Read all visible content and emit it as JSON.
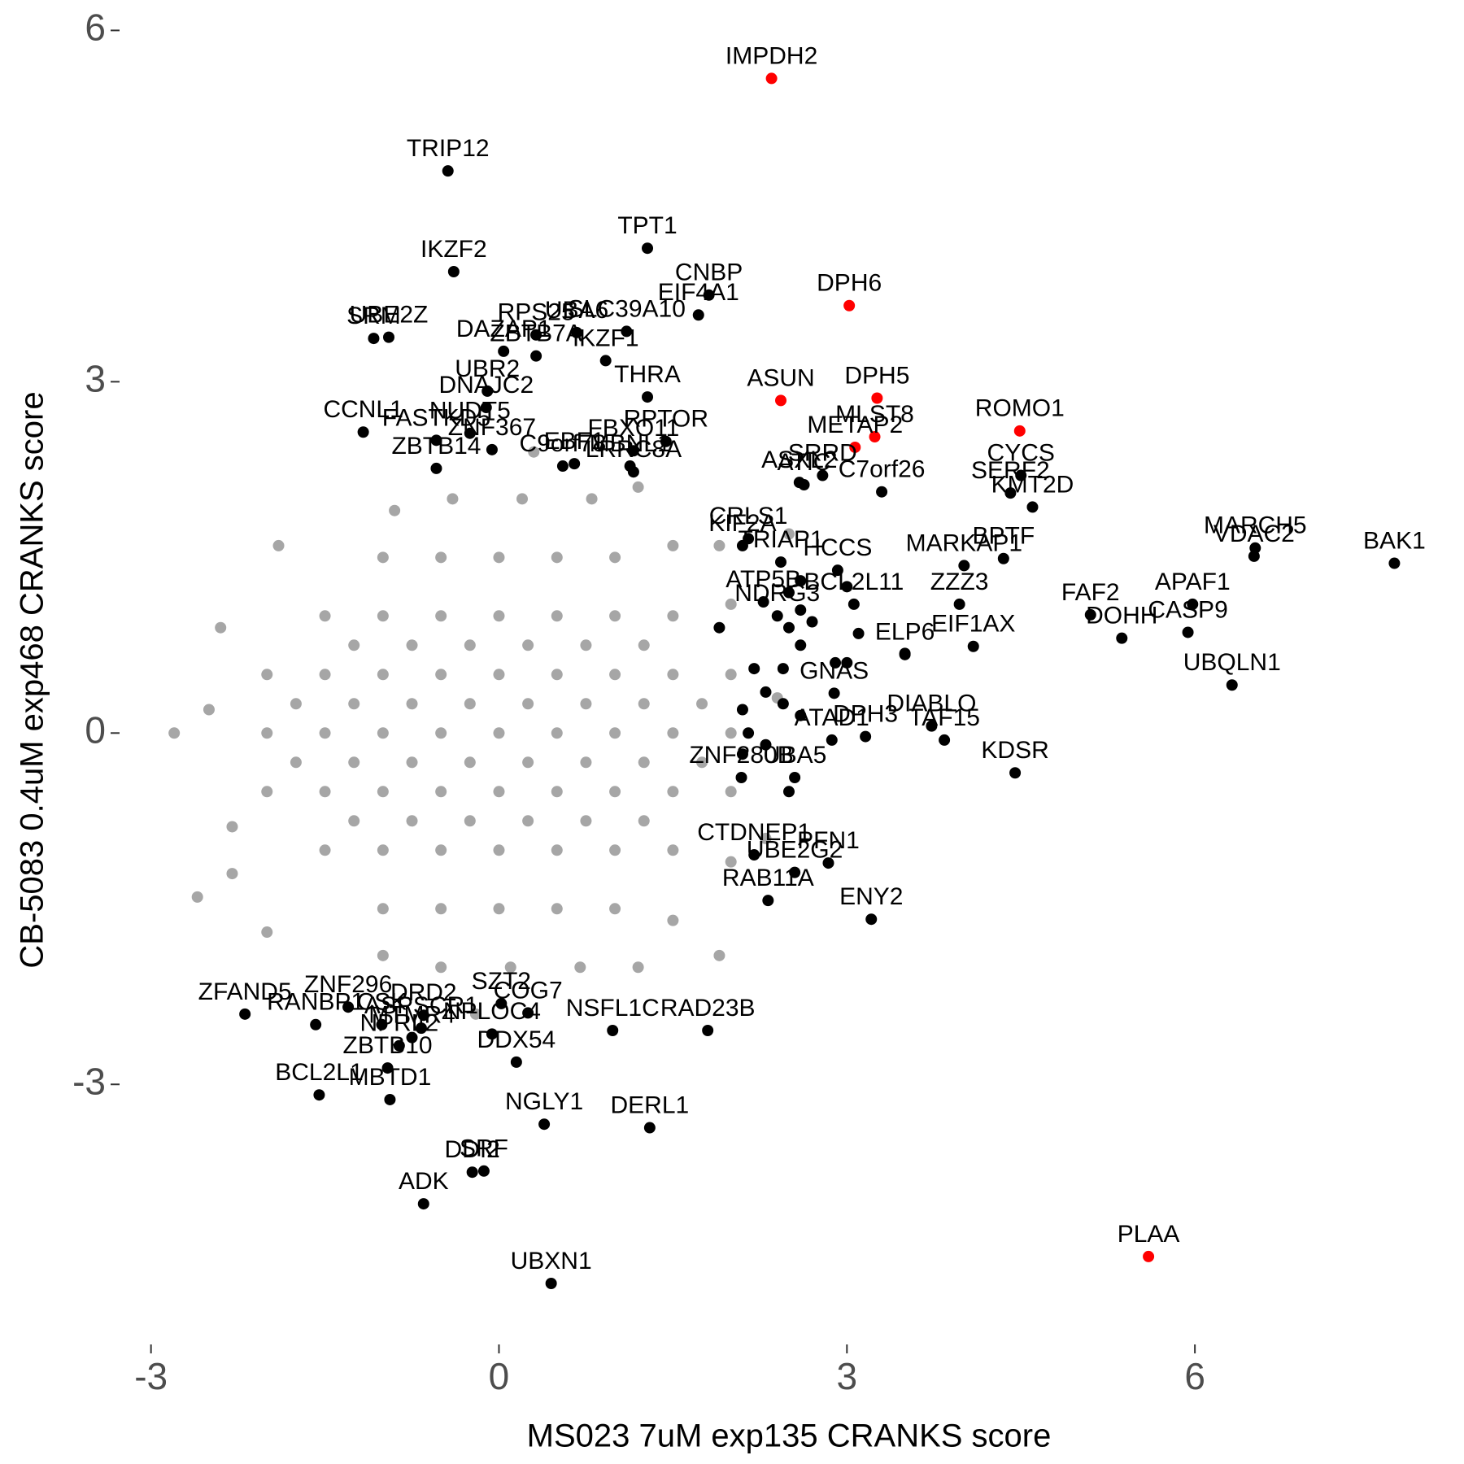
{
  "chart_data": {
    "type": "scatter",
    "xlabel": "MS023 7uM exp135 CRANKS score",
    "ylabel": "CB-5083 0.4uM exp468 CRANKS score",
    "xlim": [
      -3.25,
      8.25
    ],
    "ylim": [
      -5.2,
      6.1
    ],
    "xticks": [
      -3,
      0,
      3,
      6
    ],
    "yticks": [
      -3,
      0,
      3,
      6
    ],
    "series": [
      {
        "color": "#a6a6a6",
        "x": [
          0,
          0.5,
          -0.5,
          1,
          -1,
          1.5,
          -1.5,
          2,
          -2,
          0,
          0.5,
          -0.5,
          1,
          -1,
          1.5,
          -1.5,
          2,
          -2,
          0,
          0.5,
          -0.5,
          1,
          -1,
          1.5,
          -1.5,
          2,
          -2,
          0,
          0.5,
          -0.5,
          1,
          -1,
          1.5,
          -1.5,
          2,
          0,
          0.5,
          -0.5,
          1,
          -1,
          1.5,
          -1.5,
          2,
          0,
          0.5,
          -0.5,
          1,
          -1,
          1.5,
          0,
          0.5,
          -0.5,
          1,
          -1,
          1.5,
          0.2,
          0.8,
          -0.4,
          1.2,
          -0.9,
          0.1,
          -0.5,
          0.7,
          -1,
          1.2,
          0.3,
          -0.2,
          -2.5,
          -2.8,
          2.4,
          -2.3,
          -2.4,
          2.3,
          -2.6,
          -2.3,
          1.9,
          -1.9,
          -2,
          2.5,
          1.9,
          0.25,
          0.75,
          -0.25,
          -0.75,
          1.25,
          -1.25,
          0.25,
          0.75,
          -0.25,
          -0.75,
          1.25,
          -1.25,
          0.25,
          -0.25,
          0.75,
          -0.75,
          0.25,
          -0.25,
          0.75,
          -0.75,
          1.25,
          -1.25,
          1.25,
          -1.25,
          1.75,
          -1.75,
          1.75,
          -1.75
        ],
        "y": [
          0,
          0,
          0,
          0,
          0,
          0,
          0,
          0,
          0,
          0.5,
          0.5,
          0.5,
          0.5,
          0.5,
          0.5,
          0.5,
          0.5,
          0.5,
          -0.5,
          -0.5,
          -0.5,
          -0.5,
          -0.5,
          -0.5,
          -0.5,
          -0.5,
          -0.5,
          1,
          1,
          1,
          1,
          1,
          1,
          1,
          1.1,
          -1,
          -1,
          -1,
          -1,
          -1,
          -1,
          -1,
          -1.1,
          1.5,
          1.5,
          1.5,
          1.5,
          1.5,
          1.6,
          -1.5,
          -1.5,
          -1.5,
          -1.5,
          -1.5,
          -1.6,
          2,
          2,
          2,
          2.1,
          1.9,
          -2,
          -2,
          -2,
          -1.9,
          -2,
          2.4,
          -2.4,
          0.2,
          0,
          0.3,
          -0.8,
          0.9,
          -0.9,
          -1.4,
          -1.2,
          1.6,
          1.6,
          -1.7,
          1.7,
          -1.9,
          0.25,
          0.25,
          0.25,
          0.25,
          0.25,
          0.25,
          -0.25,
          -0.25,
          -0.25,
          -0.25,
          -0.25,
          -0.25,
          0.75,
          0.75,
          0.75,
          0.75,
          -0.75,
          -0.75,
          -0.75,
          -0.75,
          0.75,
          0.75,
          -0.75,
          -0.75,
          0.25,
          0.25,
          -0.25,
          -0.25
        ]
      },
      {
        "color": "#000000",
        "labels": [
          "TRIP12",
          "TPT1",
          "IKZF2",
          "CNBP",
          "EIF4A1",
          "SLC39A10",
          "UBE2Z",
          "SRM",
          "DAZAP1",
          "RPS25",
          "ZBTB7A",
          "UBR2",
          "UBA6",
          "IKZF1",
          "RPTOR",
          "THRA",
          "DNAJC2",
          "CCNL1",
          "NUDT5",
          "FASTKD5",
          "ZBTB14",
          "ZNF367",
          "C9orf78",
          "EBF1",
          "FBXO11",
          "MBNL1",
          "LRRC8A",
          "ASXL2",
          "SRRD",
          "CRLS1",
          "ATIC",
          "KIF2A",
          "TRIAP1",
          "ATP5B",
          "NDRG3",
          "HCCS",
          "MARKAP1",
          "BCL2L11",
          "C7orf26",
          "CYCS",
          "SERF2",
          "KMT2D",
          "BPTF",
          "MARCH5",
          "VDAC2",
          "BAK1",
          "APAF1",
          "FAF2",
          "CASP9",
          "DOHH",
          "ZZZ3",
          "ELP6",
          "EIF1AX",
          "UBQLN1",
          "GNAS",
          "TAF15",
          "DIABLO",
          "KDSR",
          "DPH3",
          "ATAD1",
          "UBA5",
          "ZNF280B",
          "PFN1",
          "UBE2G2",
          "CTDNEP1",
          "ENY2",
          "RAB11A",
          "RAD23B",
          "NSFL1C",
          "DERL1",
          "NGLY1",
          "SRF",
          "DDI2",
          "ADK",
          "UBXN1",
          "ZFAND5",
          "RANBP1",
          "ZNF296",
          "CSK",
          "ZBTB10",
          "BCL2L1",
          "MBTD1",
          "NPRL2",
          "DRD2",
          "ASPSCR1",
          "MTMR4",
          "COG7",
          "NPLOC4",
          "DDX54",
          "SZT2",
          null,
          null,
          null,
          null,
          null,
          null,
          null,
          null,
          null,
          null,
          null,
          null,
          null,
          null,
          null,
          null,
          null,
          null,
          null,
          null,
          null,
          null
        ],
        "x": [
          -0.44,
          1.28,
          -0.39,
          1.81,
          1.72,
          1.1,
          -0.95,
          -1.08,
          0.04,
          0.32,
          0.32,
          -0.1,
          0.67,
          0.92,
          1.44,
          1.28,
          -0.11,
          -1.17,
          -0.25,
          -0.54,
          -0.54,
          -0.06,
          0.55,
          0.65,
          1.16,
          1.13,
          1.16,
          2.59,
          2.79,
          2.15,
          2.63,
          2.1,
          2.43,
          2.28,
          2.4,
          2.92,
          4.01,
          3.06,
          3.3,
          4.5,
          4.41,
          4.6,
          4.35,
          6.52,
          6.51,
          7.72,
          5.98,
          5.1,
          5.94,
          5.37,
          3.97,
          3.5,
          4.09,
          6.32,
          2.89,
          3.84,
          3.73,
          4.45,
          3.16,
          2.87,
          2.55,
          2.09,
          2.84,
          2.55,
          2.2,
          3.21,
          2.32,
          1.8,
          0.98,
          1.3,
          0.39,
          -0.13,
          -0.23,
          -0.65,
          0.45,
          -2.19,
          -1.58,
          -1.3,
          -1.01,
          -0.96,
          -1.55,
          -0.94,
          -0.86,
          -0.65,
          -0.67,
          -0.75,
          0.25,
          -0.06,
          0.15,
          0.02,
          2.5,
          2.6,
          2.7,
          2.5,
          2.6,
          2.45,
          2.2,
          2.3,
          2.45,
          2.1,
          2.6,
          2.15,
          2.3,
          2.1,
          2.5,
          2.6,
          3.0,
          3.1,
          3.0,
          2.9,
          3.5,
          1.9
        ],
        "y": [
          4.8,
          4.14,
          3.94,
          3.74,
          3.57,
          3.43,
          3.38,
          3.37,
          3.26,
          3.4,
          3.22,
          2.92,
          3.42,
          3.18,
          2.49,
          2.87,
          2.78,
          2.57,
          2.56,
          2.5,
          2.26,
          2.42,
          2.28,
          2.3,
          2.41,
          2.28,
          2.23,
          2.14,
          2.2,
          1.66,
          2.12,
          1.6,
          1.46,
          1.12,
          1.0,
          1.39,
          1.43,
          1.1,
          2.06,
          2.2,
          2.05,
          1.93,
          1.49,
          1.58,
          1.51,
          1.45,
          1.1,
          1.01,
          0.86,
          0.81,
          1.1,
          0.67,
          0.74,
          0.41,
          0.34,
          -0.06,
          0.06,
          -0.34,
          -0.03,
          -0.06,
          -0.38,
          -0.38,
          -1.11,
          -1.19,
          -1.04,
          -1.59,
          -1.43,
          -2.54,
          -2.54,
          -3.37,
          -3.34,
          -3.74,
          -3.75,
          -4.02,
          -4.7,
          -2.4,
          -2.49,
          -2.34,
          -2.49,
          -2.86,
          -3.09,
          -3.13,
          -2.67,
          -2.41,
          -2.52,
          -2.6,
          -2.39,
          -2.57,
          -2.81,
          -2.31,
          1.2,
          1.05,
          0.95,
          0.9,
          0.75,
          0.55,
          0.55,
          0.35,
          0.25,
          0.2,
          0.15,
          0,
          -0.1,
          -0.18,
          -0.5,
          1.3,
          1.25,
          0.85,
          0.6,
          0.6,
          0.68,
          0.9
        ]
      },
      {
        "color": "#ff0000",
        "labels": [
          "IMPDH2",
          "DPH6",
          "ASUN",
          "DPH5",
          "MLST8",
          "METAP2",
          "ROMO1",
          "PLAA"
        ],
        "x": [
          2.35,
          3.02,
          2.43,
          3.26,
          3.24,
          3.07,
          4.49,
          5.6
        ],
        "y": [
          5.59,
          3.65,
          2.84,
          2.86,
          2.53,
          2.44,
          2.58,
          -4.47
        ]
      }
    ]
  }
}
